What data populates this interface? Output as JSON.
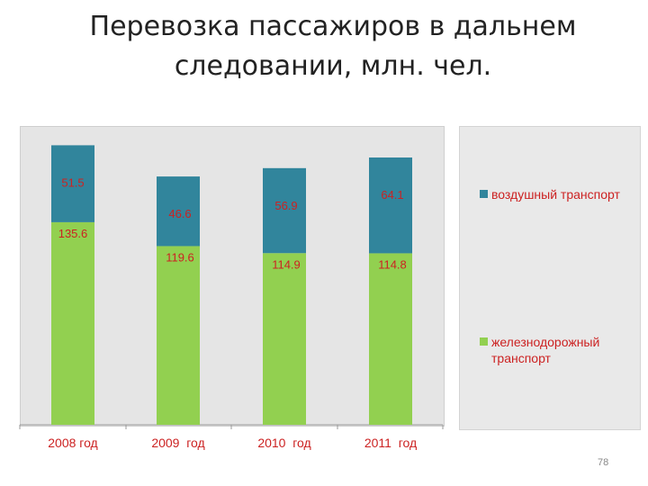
{
  "title_line1": "Перевозка пассажиров в дальнем",
  "title_line2": "следовании, млн. чел.",
  "page_number": "78",
  "colors": {
    "rail": "#92d050",
    "air": "#31859c",
    "label": "#cc2222",
    "plot_bg": "#e5e5e5"
  },
  "chart_data": {
    "type": "bar",
    "stacked": true,
    "categories": [
      "2008 год",
      "2009  год",
      "2010  год",
      "2011  год"
    ],
    "series": [
      {
        "name": "железнодорожный транспорт",
        "values": [
          135.6,
          119.6,
          114.9,
          114.8
        ],
        "color": "#92d050"
      },
      {
        "name": "воздушный транспорт",
        "values": [
          51.5,
          46.6,
          56.9,
          64.1
        ],
        "color": "#31859c"
      }
    ],
    "data_labels": {
      "rail": [
        "135.6",
        "119.6",
        "114.9",
        "114.8"
      ],
      "air": [
        "51.5",
        "46.6",
        "56.9",
        "64.1"
      ]
    },
    "legend": [
      "воздушный транспорт",
      "железнодорожный транспорт"
    ],
    "legend_lines": {
      "air": [
        "воздушный транспорт"
      ],
      "rail": [
        "железнодорожный",
        "транспорт"
      ]
    },
    "legend_position": "right",
    "ylim": [
      0,
      200
    ],
    "grid": false
  }
}
